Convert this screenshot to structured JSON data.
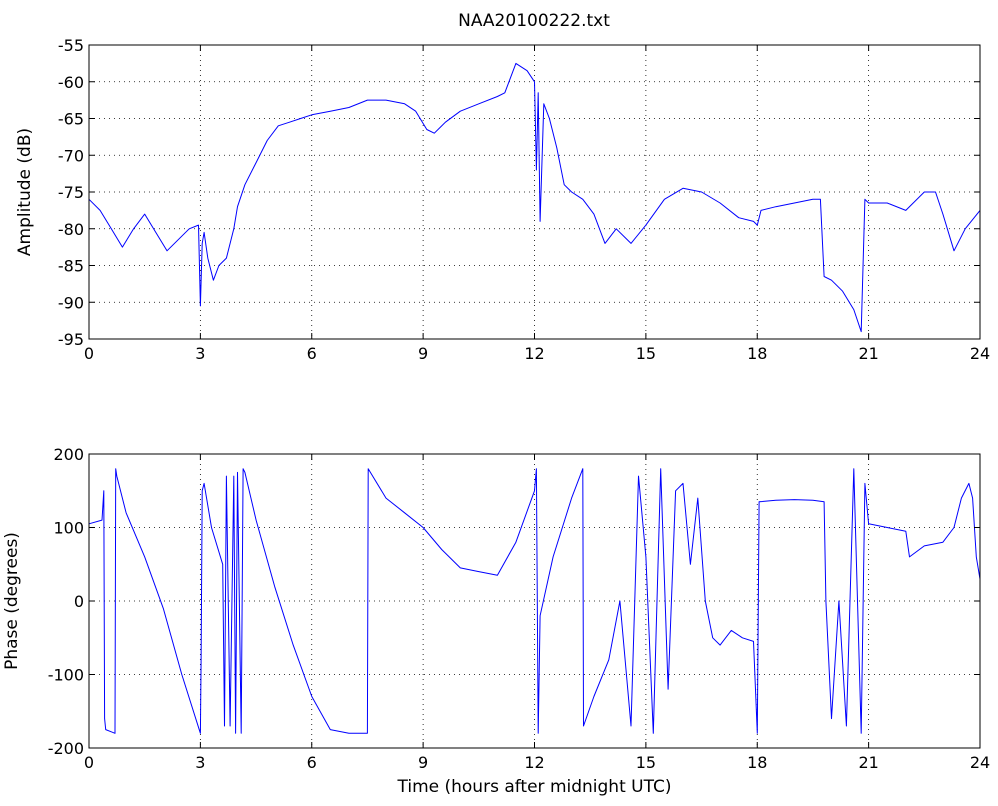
{
  "figure": {
    "title": "NAA20100222.txt"
  },
  "chart_data": [
    {
      "type": "line",
      "title": "NAA20100222.txt",
      "xlabel": "",
      "ylabel": "Amplitude (dB)",
      "xlim": [
        0,
        24
      ],
      "ylim": [
        -95,
        -55
      ],
      "xticks": [
        0,
        3,
        6,
        9,
        12,
        15,
        18,
        21,
        24
      ],
      "yticks": [
        -95,
        -90,
        -85,
        -80,
        -75,
        -70,
        -65,
        -60,
        -55
      ],
      "grid": true,
      "series": [
        {
          "color": "#0000ff",
          "x": [
            0,
            0.3,
            0.6,
            0.9,
            1.2,
            1.5,
            1.8,
            2.1,
            2.4,
            2.7,
            2.95,
            3.0,
            3.05,
            3.1,
            3.2,
            3.35,
            3.5,
            3.7,
            3.9,
            4.0,
            4.2,
            4.5,
            4.8,
            5.1,
            5.4,
            5.7,
            6.0,
            6.5,
            7.0,
            7.5,
            8.0,
            8.5,
            8.8,
            9.1,
            9.3,
            9.6,
            10.0,
            10.5,
            11.0,
            11.2,
            11.5,
            11.8,
            12.0,
            12.05,
            12.1,
            12.15,
            12.25,
            12.4,
            12.6,
            12.8,
            13.0,
            13.3,
            13.6,
            13.9,
            14.2,
            14.6,
            15.0,
            15.5,
            16.0,
            16.5,
            17.0,
            17.5,
            17.9,
            18.0,
            18.1,
            18.5,
            19.0,
            19.5,
            19.7,
            19.8,
            20.0,
            20.3,
            20.6,
            20.8,
            20.9,
            21.0,
            21.5,
            22.0,
            22.5,
            22.8,
            23.0,
            23.3,
            23.6,
            24.0
          ],
          "y": [
            -76,
            -77.5,
            -80,
            -82.5,
            -80,
            -78,
            -80.5,
            -83,
            -81.5,
            -80,
            -79.5,
            -90.5,
            -82,
            -80.5,
            -84,
            -87,
            -85,
            -84,
            -80,
            -77,
            -74,
            -71,
            -68,
            -66,
            -65.5,
            -65,
            -64.5,
            -64,
            -63.5,
            -62.5,
            -62.5,
            -63,
            -64,
            -66.5,
            -67,
            -65.5,
            -64,
            -63,
            -62,
            -61.5,
            -57.5,
            -58.5,
            -60,
            -72,
            -61.5,
            -79,
            -63,
            -65,
            -69,
            -74,
            -75,
            -76,
            -78,
            -82,
            -80,
            -82,
            -79.5,
            -76,
            -74.5,
            -75,
            -76.5,
            -78.5,
            -79,
            -79.5,
            -77.5,
            -77,
            -76.5,
            -76,
            -76,
            -86.5,
            -87,
            -88.5,
            -91,
            -94,
            -76,
            -76.5,
            -76.5,
            -77.5,
            -75,
            -75,
            -78,
            -83,
            -80,
            -77.5
          ]
        }
      ]
    },
    {
      "type": "line",
      "title": "",
      "xlabel": "Time (hours after midnight UTC)",
      "ylabel": "Phase (degrees)",
      "xlim": [
        0,
        24
      ],
      "ylim": [
        -200,
        200
      ],
      "xticks": [
        0,
        3,
        6,
        9,
        12,
        15,
        18,
        21,
        24
      ],
      "yticks": [
        -200,
        -100,
        0,
        100,
        200
      ],
      "grid": true,
      "series": [
        {
          "color": "#0000ff",
          "x": [
            0,
            0.35,
            0.4,
            0.42,
            0.45,
            0.6,
            0.7,
            0.72,
            0.75,
            1.0,
            1.5,
            2.0,
            2.5,
            3.0,
            3.02,
            3.05,
            3.1,
            3.3,
            3.6,
            3.65,
            3.7,
            3.8,
            3.9,
            3.95,
            4.0,
            4.1,
            4.15,
            4.2,
            4.5,
            5.0,
            5.5,
            6.0,
            6.5,
            7.0,
            7.5,
            7.52,
            8.0,
            8.5,
            9.0,
            9.5,
            10.0,
            10.5,
            11.0,
            11.5,
            12.0,
            12.05,
            12.1,
            12.15,
            12.5,
            13.0,
            13.3,
            13.32,
            13.6,
            14.0,
            14.3,
            14.6,
            14.8,
            15.0,
            15.2,
            15.4,
            15.6,
            15.8,
            16.0,
            16.2,
            16.4,
            16.6,
            16.8,
            17.0,
            17.3,
            17.6,
            17.9,
            18.0,
            18.05,
            18.5,
            19.0,
            19.5,
            19.8,
            19.85,
            20.0,
            20.2,
            20.4,
            20.6,
            20.8,
            20.9,
            21.0,
            21.5,
            22.0,
            22.1,
            22.5,
            23.0,
            23.3,
            23.5,
            23.7,
            23.8,
            23.9,
            24.0
          ],
          "y": [
            105,
            110,
            150,
            -160,
            -175,
            -178,
            -180,
            180,
            170,
            120,
            60,
            -10,
            -100,
            -180,
            -80,
            150,
            160,
            100,
            50,
            -170,
            170,
            -170,
            170,
            -180,
            175,
            -180,
            180,
            175,
            110,
            20,
            -60,
            -130,
            -175,
            -180,
            -180,
            180,
            140,
            120,
            100,
            70,
            45,
            40,
            35,
            80,
            150,
            180,
            -180,
            -20,
            60,
            140,
            180,
            -170,
            -130,
            -80,
            0,
            -170,
            170,
            60,
            -180,
            180,
            -120,
            150,
            160,
            50,
            140,
            0,
            -50,
            -60,
            -40,
            -50,
            -55,
            -180,
            135,
            137,
            138,
            137,
            135,
            0,
            -160,
            0,
            -170,
            180,
            -180,
            160,
            105,
            100,
            95,
            60,
            75,
            80,
            100,
            140,
            160,
            140,
            60,
            30
          ]
        }
      ]
    }
  ]
}
